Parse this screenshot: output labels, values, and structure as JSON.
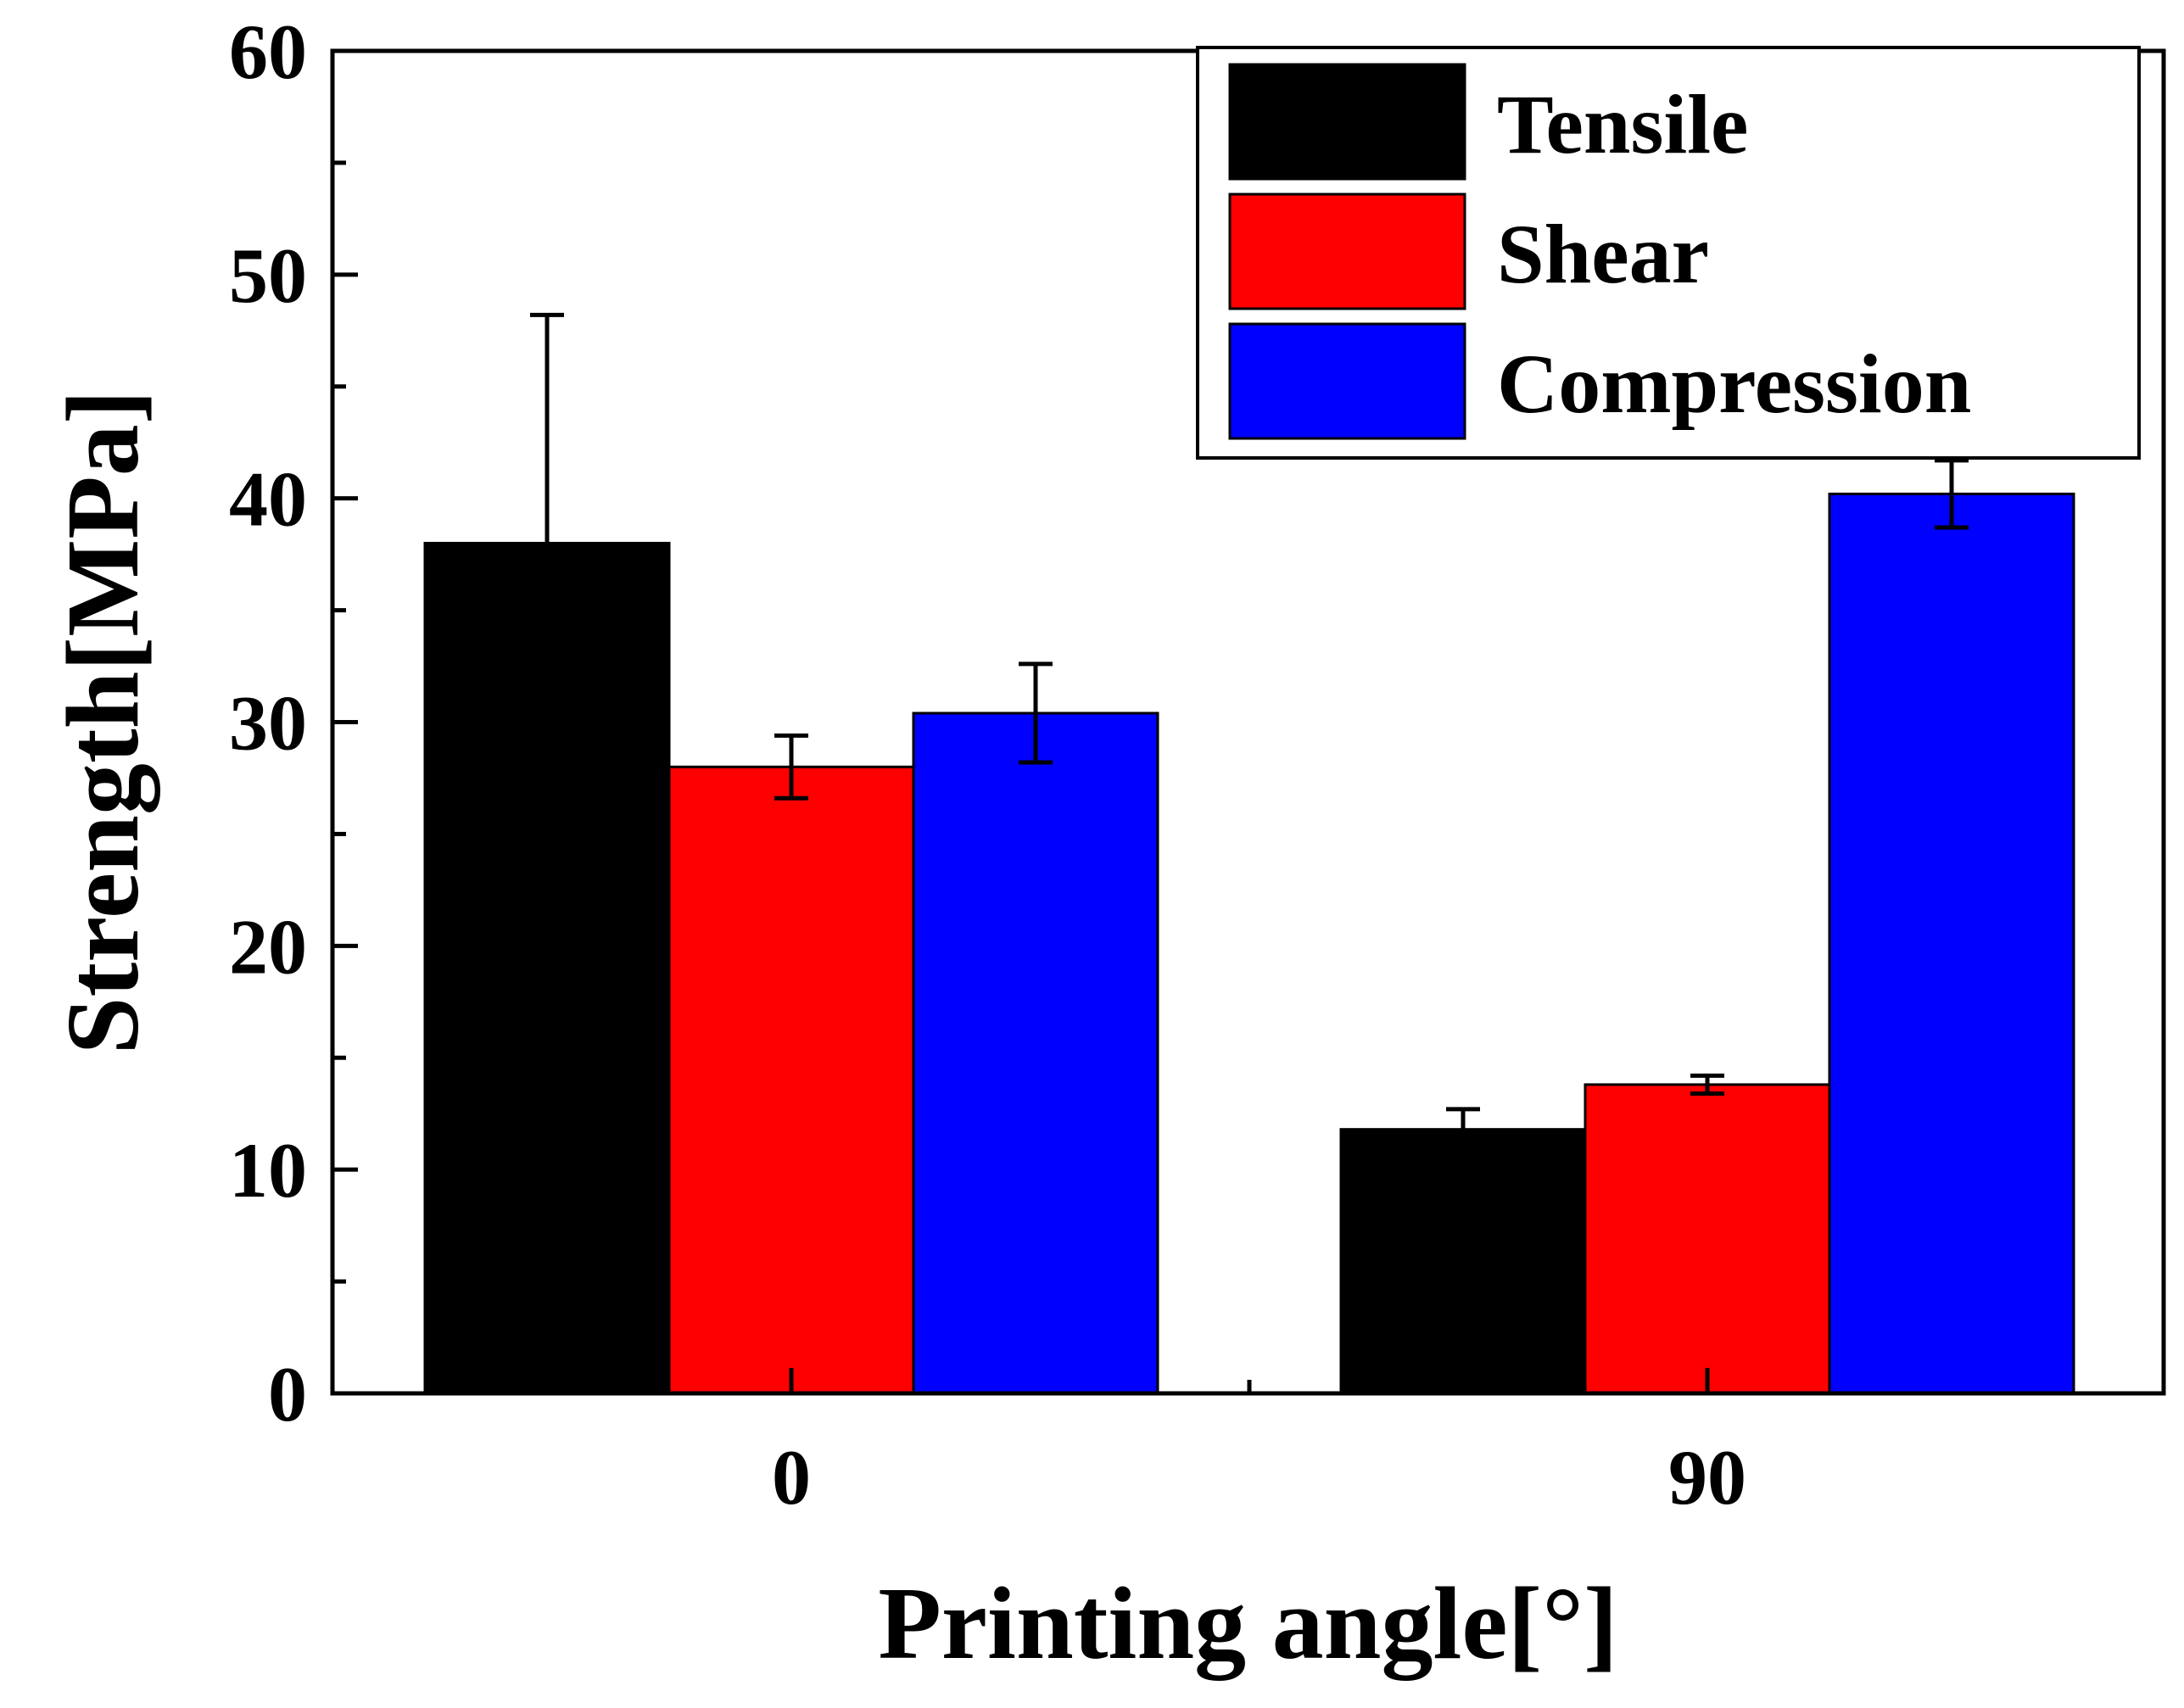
{
  "chart_data": {
    "type": "bar",
    "title": "",
    "xlabel": "Printing angle[°]",
    "ylabel": "Strength[MPa]",
    "ylim": [
      0,
      60
    ],
    "yticks": [
      0,
      10,
      20,
      30,
      40,
      50,
      60
    ],
    "ytick_labels": [
      "0",
      "10",
      "20",
      "30",
      "40",
      "50",
      "60"
    ],
    "categories": [
      "0",
      "90"
    ],
    "series": [
      {
        "name": "Tensile",
        "color": "#000000",
        "values": [
          38.0,
          11.8
        ],
        "errors": [
          10.2,
          0.9
        ]
      },
      {
        "name": "Shear",
        "color": "#ff0000",
        "values": [
          28.0,
          13.8
        ],
        "errors": [
          1.4,
          0.4
        ]
      },
      {
        "name": "Compression",
        "color": "#0000ff",
        "values": [
          30.4,
          40.2
        ],
        "errors": [
          2.2,
          1.5
        ]
      }
    ],
    "legend": {
      "position": "top-right"
    },
    "grid": false
  }
}
